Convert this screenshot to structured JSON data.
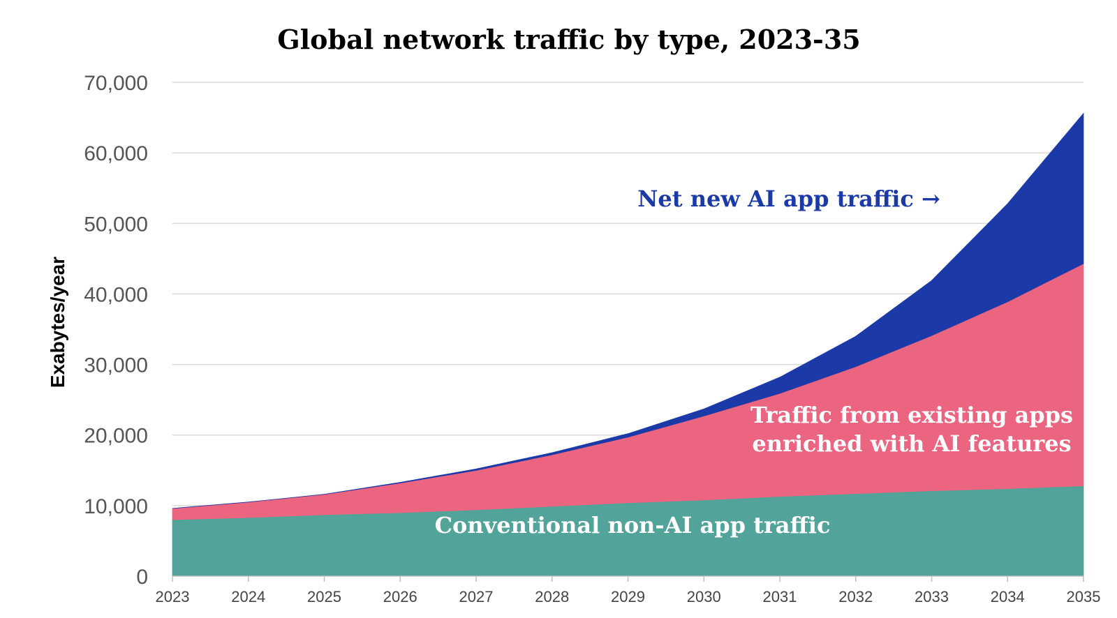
{
  "chart_data": {
    "type": "area",
    "stacked": true,
    "title": "Global network traffic by type, 2023-35",
    "xlabel": "",
    "ylabel": "Exabytes/year",
    "x": [
      2023,
      2024,
      2025,
      2026,
      2027,
      2028,
      2029,
      2030,
      2031,
      2032,
      2033,
      2034,
      2035
    ],
    "x_tick_labels": [
      "2023",
      "2024",
      "2025",
      "2026",
      "2027",
      "2028",
      "2029",
      "2030",
      "2031",
      "2032",
      "2033",
      "2034",
      "2035"
    ],
    "ylim": [
      0,
      70000
    ],
    "y_ticks": [
      0,
      10000,
      20000,
      30000,
      40000,
      50000,
      60000,
      70000
    ],
    "y_tick_labels": [
      "0",
      "10,000",
      "20,000",
      "30,000",
      "40,000",
      "50,000",
      "60,000",
      "70,000"
    ],
    "grid": true,
    "legend": "none (series labeled directly on chart)",
    "series": [
      {
        "name": "Conventional non-AI app traffic",
        "color": "#52a39a",
        "values": [
          8000,
          8300,
          8700,
          9000,
          9400,
          9900,
          10400,
          10800,
          11300,
          11700,
          12100,
          12400,
          12800
        ]
      },
      {
        "name": "Traffic from existing apps enriched with AI features",
        "color": "#eb6480",
        "values": [
          1600,
          2200,
          2900,
          4200,
          5600,
          7300,
          9300,
          11900,
          14600,
          18000,
          22000,
          26500,
          31500
        ]
      },
      {
        "name": "Net new AI app traffic",
        "color": "#1b3aa8",
        "values": [
          0,
          0,
          0,
          100,
          200,
          300,
          500,
          1000,
          2300,
          4300,
          7800,
          13900,
          21300
        ]
      }
    ],
    "annotations": [
      {
        "text_lines": [
          "Net new AI app traffic →"
        ],
        "color": "#1b3aa8"
      },
      {
        "text_lines": [
          "Traffic from existing apps",
          "enriched with AI features"
        ],
        "color": "#ffffff"
      },
      {
        "text_lines": [
          "Conventional non-AI app traffic"
        ],
        "color": "#ffffff"
      }
    ]
  }
}
